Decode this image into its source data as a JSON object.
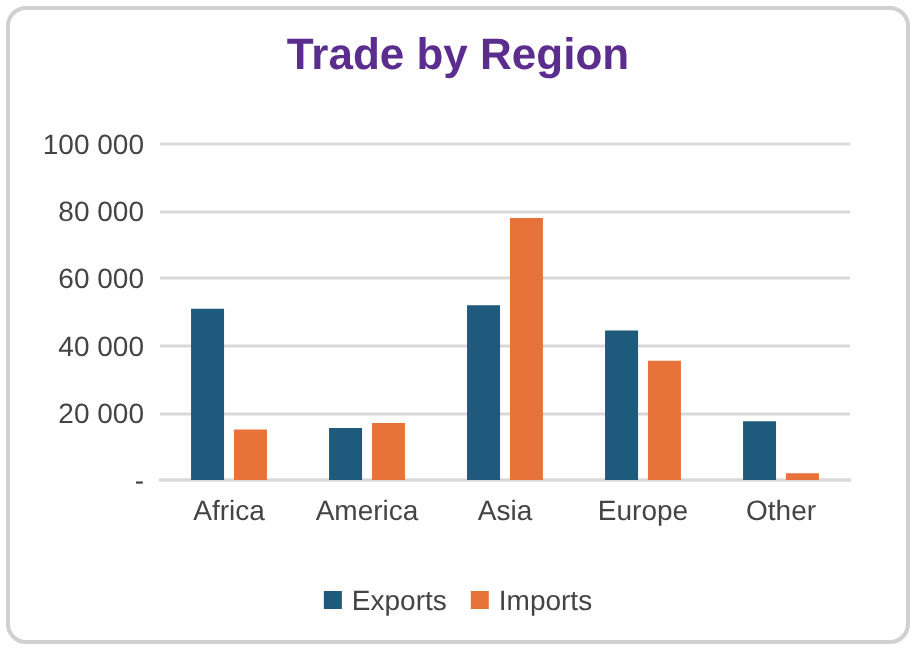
{
  "chart_data": {
    "type": "bar",
    "title": "Trade by Region",
    "categories": [
      "Africa",
      "America",
      "Asia",
      "Europe",
      "Other"
    ],
    "series": [
      {
        "name": "Exports",
        "color": "#1d5a7c",
        "values": [
          51000,
          15500,
          52000,
          44500,
          17500
        ]
      },
      {
        "name": "Imports",
        "color": "#e8733a",
        "values": [
          15000,
          17000,
          78000,
          35500,
          2000
        ]
      }
    ],
    "ylim": [
      0,
      100000
    ],
    "yticks": [
      {
        "value": 0,
        "label": "-"
      },
      {
        "value": 20000,
        "label": "20 000"
      },
      {
        "value": 40000,
        "label": "40 000"
      },
      {
        "value": 60000,
        "label": "60 000"
      },
      {
        "value": 80000,
        "label": "80 000"
      },
      {
        "value": 100000,
        "label": "100 000"
      }
    ],
    "grid": "y",
    "legend": "bottom"
  }
}
